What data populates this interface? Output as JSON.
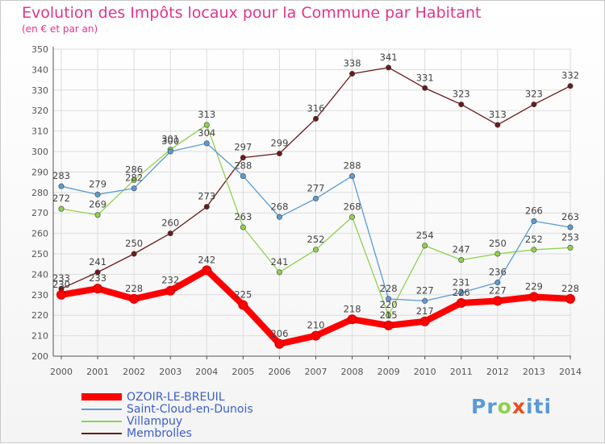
{
  "header": {
    "title": "Evolution des Impôts locaux pour la Commune par Habitant",
    "subtitle": "(en € et par an)"
  },
  "brand": {
    "p1": "Pr",
    "o": "o",
    "x": "x",
    "p2": "iti"
  },
  "colors": {
    "title": "#e0358a",
    "grid": "#dcdcdc",
    "axis": "#555555",
    "label": "#555555"
  },
  "chart_data": {
    "type": "line",
    "title": "Evolution des Impôts locaux pour la Commune par Habitant",
    "subtitle": "(en € et par an)",
    "x": [
      2000,
      2001,
      2002,
      2003,
      2004,
      2005,
      2006,
      2007,
      2008,
      2009,
      2010,
      2011,
      2012,
      2013,
      2014
    ],
    "ylim": [
      200,
      350
    ],
    "yticks": [
      200,
      210,
      220,
      230,
      240,
      250,
      260,
      270,
      280,
      290,
      300,
      310,
      320,
      330,
      340,
      350
    ],
    "grid": true,
    "legend_position": "bottom-left",
    "series": [
      {
        "name": "OZOIR-LE-BREUIL",
        "color": "#ff0000",
        "values": [
          230,
          233,
          228,
          232,
          242,
          225,
          206,
          210,
          218,
          215,
          217,
          226,
          227,
          229,
          228
        ]
      },
      {
        "name": "Saint-Cloud-en-Dunois",
        "color": "#5b9bd5",
        "values": [
          283,
          279,
          282,
          300,
          304,
          288,
          268,
          277,
          288,
          228,
          227,
          231,
          236,
          266,
          263
        ]
      },
      {
        "name": "Villampuy",
        "color": "#8fd14f",
        "values": [
          272,
          269,
          286,
          301,
          313,
          263,
          241,
          252,
          268,
          220,
          254,
          247,
          250,
          252,
          253
        ]
      },
      {
        "name": "Membrolles",
        "color": "#6b1a1a",
        "values": [
          233,
          241,
          250,
          260,
          273,
          297,
          299,
          316,
          338,
          341,
          331,
          323,
          313,
          323,
          332
        ]
      }
    ]
  }
}
